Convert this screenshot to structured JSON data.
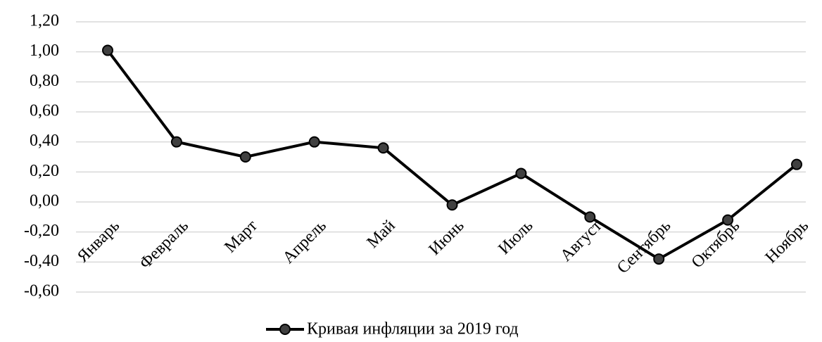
{
  "chart_data": {
    "type": "line",
    "categories": [
      "Январь",
      "Февраль",
      "Март",
      "Апрель",
      "Май",
      "Июнь",
      "Июль",
      "Август",
      "Сентябрь",
      "Октябрь",
      "Ноябрь"
    ],
    "series": [
      {
        "name": "Кривая инфляции за 2019 год",
        "color": "#000000",
        "marker_color": "#404040",
        "values": [
          1.01,
          0.4,
          0.3,
          0.4,
          0.36,
          -0.02,
          0.19,
          -0.1,
          -0.38,
          -0.12,
          0.25
        ]
      }
    ],
    "ylim": [
      -0.6,
      1.2
    ],
    "yticks": [
      {
        "value": -0.6,
        "label": "-0,60"
      },
      {
        "value": -0.4,
        "label": "-0,40"
      },
      {
        "value": -0.2,
        "label": "-0,20"
      },
      {
        "value": 0,
        "label": "0,00"
      },
      {
        "value": 0.2,
        "label": "0,20"
      },
      {
        "value": 0.4,
        "label": "0,40"
      },
      {
        "value": 0.6,
        "label": "0,60"
      },
      {
        "value": 0.8,
        "label": "0,80"
      },
      {
        "value": 1.0,
        "label": "1,00"
      },
      {
        "value": 1.2,
        "label": "1,20"
      }
    ],
    "grid": true,
    "legend": "bottom"
  }
}
